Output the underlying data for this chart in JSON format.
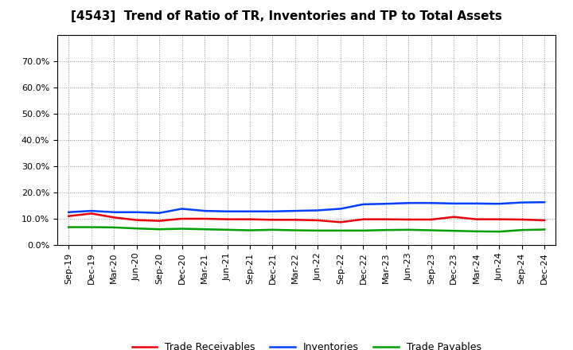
{
  "title": "[4543]  Trend of Ratio of TR, Inventories and TP to Total Assets",
  "x_labels": [
    "Sep-19",
    "Dec-19",
    "Mar-20",
    "Jun-20",
    "Sep-20",
    "Dec-20",
    "Mar-21",
    "Jun-21",
    "Sep-21",
    "Dec-21",
    "Mar-22",
    "Jun-22",
    "Sep-22",
    "Dec-22",
    "Mar-23",
    "Jun-23",
    "Sep-23",
    "Dec-23",
    "Mar-24",
    "Jun-24",
    "Sep-24",
    "Dec-24"
  ],
  "trade_receivables": [
    0.11,
    0.12,
    0.105,
    0.095,
    0.092,
    0.1,
    0.1,
    0.098,
    0.098,
    0.096,
    0.096,
    0.094,
    0.087,
    0.098,
    0.098,
    0.097,
    0.097,
    0.107,
    0.098,
    0.098,
    0.097,
    0.094
  ],
  "inventories": [
    0.125,
    0.13,
    0.125,
    0.125,
    0.122,
    0.138,
    0.13,
    0.128,
    0.128,
    0.128,
    0.13,
    0.132,
    0.138,
    0.155,
    0.157,
    0.16,
    0.16,
    0.158,
    0.158,
    0.157,
    0.162,
    0.163
  ],
  "trade_payables": [
    0.068,
    0.068,
    0.067,
    0.063,
    0.06,
    0.062,
    0.06,
    0.058,
    0.056,
    0.058,
    0.056,
    0.055,
    0.055,
    0.055,
    0.057,
    0.058,
    0.056,
    0.054,
    0.052,
    0.051,
    0.057,
    0.059
  ],
  "tr_color": "#e8000a",
  "inv_color": "#0040ff",
  "tp_color": "#00a000",
  "ylim": [
    0,
    0.8
  ],
  "yticks": [
    0.0,
    0.1,
    0.2,
    0.3,
    0.4,
    0.5,
    0.6,
    0.7
  ],
  "ytick_labels": [
    "0.0%",
    "10.0%",
    "20.0%",
    "30.0%",
    "40.0%",
    "50.0%",
    "60.0%",
    "70.0%"
  ],
  "legend_tr": "Trade Receivables",
  "legend_inv": "Inventories",
  "legend_tp": "Trade Payables",
  "bg_color": "#ffffff",
  "grid_color": "#999999",
  "title_fontsize": 11,
  "tick_fontsize": 8
}
